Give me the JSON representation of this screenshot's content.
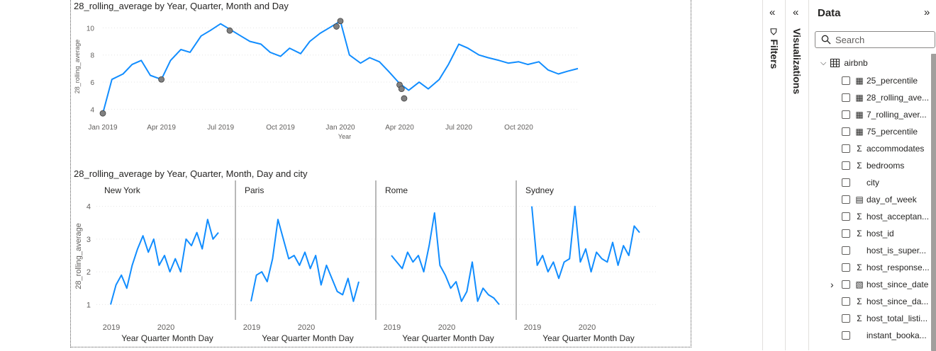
{
  "chart_data": [
    {
      "type": "line",
      "title": "28_rolling_average by Year, Quarter, Month and Day",
      "xlabel": "Year",
      "ylabel": "28_rolling_average",
      "x_ticks": [
        "Jan 2019",
        "Apr 2019",
        "Jul 2019",
        "Oct 2019",
        "Jan 2020",
        "Apr 2020",
        "Jul 2020",
        "Oct 2020"
      ],
      "y_ticks": [
        4,
        6,
        8,
        10
      ],
      "ylim": [
        3.5,
        10.8
      ],
      "grid": true,
      "series": [
        {
          "x": [
            "2019-01-01",
            "2019-01-15",
            "2019-02-01",
            "2019-02-15",
            "2019-03-01",
            "2019-03-15",
            "2019-04-01",
            "2019-04-15",
            "2019-05-01",
            "2019-05-15",
            "2019-06-01",
            "2019-06-15",
            "2019-07-01",
            "2019-07-15",
            "2019-08-01",
            "2019-08-15",
            "2019-09-01",
            "2019-09-15",
            "2019-10-01",
            "2019-10-15",
            "2019-11-01",
            "2019-11-15",
            "2019-12-01",
            "2019-12-15",
            "2020-01-01",
            "2020-01-15",
            "2020-02-01",
            "2020-02-15",
            "2020-03-01",
            "2020-03-15",
            "2020-04-01",
            "2020-04-15",
            "2020-05-01",
            "2020-05-15",
            "2020-06-01",
            "2020-06-15",
            "2020-07-01",
            "2020-07-15",
            "2020-08-01",
            "2020-08-15",
            "2020-09-01",
            "2020-09-15",
            "2020-10-01",
            "2020-10-15",
            "2020-11-01",
            "2020-11-15",
            "2020-12-01",
            "2020-12-15",
            "2020-12-31"
          ],
          "values": [
            3.7,
            6.2,
            6.6,
            7.3,
            7.6,
            6.5,
            6.2,
            7.6,
            8.4,
            8.2,
            9.4,
            9.8,
            10.3,
            9.9,
            9.4,
            9.0,
            8.8,
            8.2,
            7.9,
            8.5,
            8.1,
            9.0,
            9.6,
            10.0,
            10.5,
            8.0,
            7.4,
            7.8,
            7.5,
            6.8,
            5.9,
            5.4,
            6.0,
            5.5,
            6.2,
            7.3,
            8.8,
            8.5,
            8.0,
            7.8,
            7.6,
            7.4,
            7.5,
            7.3,
            7.5,
            6.9,
            6.6,
            6.8,
            7.0
          ],
          "markers": [
            {
              "x": "2019-01-01",
              "y": 3.7
            },
            {
              "x": "2019-04-01",
              "y": 6.2
            },
            {
              "x": "2019-07-15",
              "y": 9.8
            },
            {
              "x": "2019-12-26",
              "y": 10.1
            },
            {
              "x": "2020-01-01",
              "y": 10.5
            },
            {
              "x": "2020-04-01",
              "y": 5.8
            },
            {
              "x": "2020-04-04",
              "y": 5.5
            },
            {
              "x": "2020-04-08",
              "y": 4.8
            }
          ]
        }
      ]
    },
    {
      "type": "line",
      "title": "28_rolling_average by Year, Quarter, Month, Day and city",
      "xlabel": "Year Quarter Month Day",
      "ylabel": "28_rolling_average",
      "x_ticks": [
        "2019",
        "2020"
      ],
      "y_ticks": [
        1,
        2,
        3,
        4
      ],
      "ylim": [
        0.9,
        4.1
      ],
      "grid": true,
      "series": [
        {
          "name": "New York",
          "x": [
            0,
            0.05,
            0.1,
            0.15,
            0.2,
            0.25,
            0.3,
            0.35,
            0.4,
            0.45,
            0.5,
            0.55,
            0.6,
            0.65,
            0.7,
            0.75,
            0.8,
            0.85,
            0.9,
            0.95,
            1.0
          ],
          "values": [
            1.0,
            1.6,
            1.9,
            1.5,
            2.2,
            2.7,
            3.1,
            2.6,
            3.0,
            2.2,
            2.5,
            2.0,
            2.4,
            2.0,
            3.0,
            2.8,
            3.2,
            2.7,
            3.6,
            3.0,
            3.2
          ]
        },
        {
          "name": "Paris",
          "x": [
            0,
            0.05,
            0.1,
            0.15,
            0.2,
            0.25,
            0.3,
            0.35,
            0.4,
            0.45,
            0.5,
            0.55,
            0.6,
            0.65,
            0.7,
            0.75,
            0.8,
            0.85,
            0.9,
            0.95,
            1.0
          ],
          "values": [
            1.1,
            1.9,
            2.0,
            1.7,
            2.4,
            3.6,
            3.0,
            2.4,
            2.5,
            2.2,
            2.6,
            2.1,
            2.5,
            1.6,
            2.2,
            1.8,
            1.4,
            1.3,
            1.8,
            1.1,
            1.7
          ]
        },
        {
          "name": "Rome",
          "x": [
            0,
            0.05,
            0.1,
            0.15,
            0.2,
            0.25,
            0.3,
            0.35,
            0.4,
            0.45,
            0.5,
            0.55,
            0.6,
            0.65,
            0.7,
            0.75,
            0.8,
            0.85,
            0.9,
            0.95,
            1.0
          ],
          "values": [
            2.5,
            2.3,
            2.1,
            2.6,
            2.3,
            2.5,
            2.0,
            2.8,
            3.8,
            2.2,
            1.9,
            1.5,
            1.7,
            1.1,
            1.4,
            2.3,
            1.1,
            1.5,
            1.3,
            1.2,
            1.0
          ]
        },
        {
          "name": "Sydney",
          "x": [
            0,
            0.05,
            0.1,
            0.15,
            0.2,
            0.25,
            0.3,
            0.35,
            0.4,
            0.45,
            0.5,
            0.55,
            0.6,
            0.65,
            0.7,
            0.75,
            0.8,
            0.85,
            0.9,
            0.95,
            1.0
          ],
          "values": [
            4.0,
            2.2,
            2.5,
            2.0,
            2.3,
            1.8,
            2.3,
            2.4,
            4.0,
            2.3,
            2.7,
            2.0,
            2.6,
            2.4,
            2.3,
            2.9,
            2.2,
            2.8,
            2.5,
            3.4,
            3.2
          ]
        }
      ]
    }
  ],
  "filters_pane": {
    "label": "Filters"
  },
  "viz_pane": {
    "label": "Visualizations"
  },
  "data_pane": {
    "title": "Data",
    "search_placeholder": "Search",
    "table_name": "airbnb",
    "fields": [
      {
        "name": "25_percentile",
        "icon": "calculator-icon"
      },
      {
        "name": "28_rolling_ave...",
        "icon": "calculator-icon"
      },
      {
        "name": "7_rolling_aver...",
        "icon": "calculator-icon"
      },
      {
        "name": "75_percentile",
        "icon": "calculator-icon"
      },
      {
        "name": "accommodates",
        "icon": "sigma-icon"
      },
      {
        "name": "bedrooms",
        "icon": "sigma-icon"
      },
      {
        "name": "city",
        "icon": ""
      },
      {
        "name": "day_of_week",
        "icon": "calc-column-icon"
      },
      {
        "name": "host_acceptan...",
        "icon": "sigma-icon"
      },
      {
        "name": "host_id",
        "icon": "sigma-icon"
      },
      {
        "name": "host_is_super...",
        "icon": ""
      },
      {
        "name": "host_response...",
        "icon": "sigma-icon"
      },
      {
        "name": "host_since_date",
        "icon": "date-hierarchy-icon",
        "expandable": true
      },
      {
        "name": "host_since_da...",
        "icon": "sigma-icon"
      },
      {
        "name": "host_total_listi...",
        "icon": "sigma-icon"
      },
      {
        "name": "instant_booka...",
        "icon": ""
      }
    ]
  },
  "colors": {
    "line": "#118DFF",
    "marker": "#808080",
    "grid": "#e6e6e6",
    "axis_text": "#605e5c"
  }
}
